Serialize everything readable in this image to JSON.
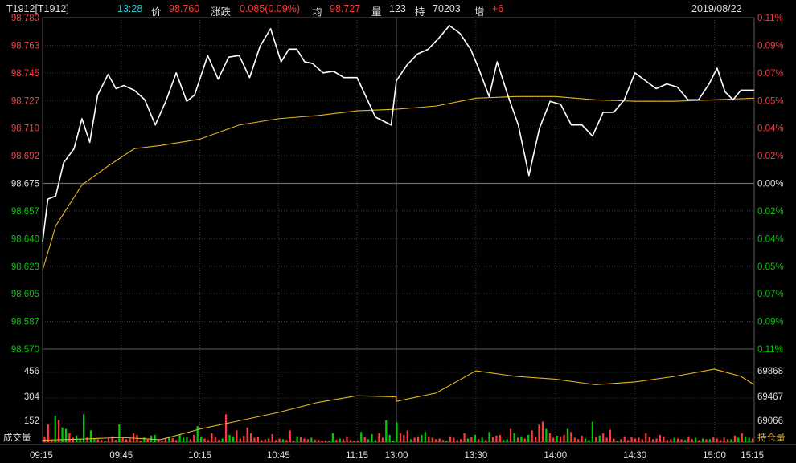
{
  "header": {
    "symbol": "T1912[T1912]",
    "time": "13:28",
    "price_label": "价",
    "price": "98.760",
    "change_label": "涨跌",
    "change": "0.085(0.09%)",
    "avg_label": "均",
    "avg": "98.727",
    "vol_label": "量",
    "vol": "123",
    "oi_label": "持",
    "oi": "70203",
    "inc_label": "增",
    "inc": "+6",
    "date": "2019/08/22"
  },
  "labels": {
    "volume": "成交量",
    "open_interest": "持仓量"
  },
  "colors": {
    "up": "#ff3b3b",
    "down": "#00cc00",
    "price_line": "#ffffff",
    "avg_line": "#e6b422",
    "grid": "#3a3a3a",
    "accent": "#21c8d8",
    "background": "#000000"
  },
  "chart_data": {
    "type": "line",
    "x_ticks": [
      "09:15",
      "09:45",
      "10:15",
      "10:45",
      "11:15",
      "13:00",
      "13:30",
      "14:00",
      "14:30",
      "15:00",
      "15:15"
    ],
    "price_axis": {
      "ticks": [
        "98.780",
        "98.763",
        "98.745",
        "98.727",
        "98.710",
        "98.692",
        "98.675",
        "98.657",
        "98.640",
        "98.623",
        "98.605",
        "98.587",
        "98.570"
      ],
      "ylim": [
        98.57,
        98.78
      ],
      "reference": 98.675
    },
    "pct_axis": {
      "ticks": [
        "0.11%",
        "0.09%",
        "0.07%",
        "0.05%",
        "0.04%",
        "0.02%",
        "0.00%",
        "0.02%",
        "0.04%",
        "0.05%",
        "0.07%",
        "0.09%",
        "0.11%"
      ]
    },
    "volume_axis": {
      "ticks": [
        "456",
        "304",
        "152"
      ],
      "ylim": [
        0,
        608
      ]
    },
    "oi_axis": {
      "ticks": [
        "69868",
        "69467",
        "69066"
      ],
      "ylim": [
        68665,
        70269
      ]
    },
    "series": [
      {
        "name": "价",
        "x": [
          "09:15",
          "09:17",
          "09:20",
          "09:23",
          "09:27",
          "09:30",
          "09:33",
          "09:36",
          "09:40",
          "09:43",
          "09:46",
          "09:50",
          "09:54",
          "09:58",
          "10:02",
          "10:06",
          "10:10",
          "10:13",
          "10:18",
          "10:22",
          "10:26",
          "10:30",
          "10:34",
          "10:38",
          "10:42",
          "10:46",
          "10:49",
          "10:52",
          "10:55",
          "10:58",
          "11:02",
          "11:06",
          "11:10",
          "11:15",
          "11:22",
          "11:28",
          "13:00",
          "13:04",
          "13:08",
          "13:12",
          "13:16",
          "13:20",
          "13:24",
          "13:28",
          "13:31",
          "13:35",
          "13:38",
          "13:42",
          "13:46",
          "13:50",
          "13:54",
          "13:58",
          "14:02",
          "14:06",
          "14:10",
          "14:14",
          "14:18",
          "14:22",
          "14:26",
          "14:30",
          "14:34",
          "14:38",
          "14:42",
          "14:46",
          "14:50",
          "14:54",
          "14:58",
          "15:01",
          "15:04",
          "15:07",
          "15:10",
          "15:13",
          "15:15"
        ],
        "values": [
          98.638,
          98.665,
          98.667,
          98.688,
          98.697,
          98.716,
          98.701,
          98.731,
          98.744,
          98.735,
          98.737,
          98.734,
          98.728,
          98.712,
          98.727,
          98.745,
          98.727,
          98.731,
          98.756,
          98.741,
          98.755,
          98.756,
          98.742,
          98.762,
          98.773,
          98.752,
          98.76,
          98.76,
          98.752,
          98.751,
          98.745,
          98.746,
          98.742,
          98.742,
          98.717,
          98.712,
          98.74,
          98.75,
          98.757,
          98.76,
          98.767,
          98.775,
          98.77,
          98.76,
          98.748,
          98.73,
          98.752,
          98.731,
          98.712,
          98.68,
          98.71,
          98.727,
          98.725,
          98.712,
          98.712,
          98.705,
          98.72,
          98.72,
          98.728,
          98.745,
          98.74,
          98.735,
          98.738,
          98.736,
          98.728,
          98.728,
          98.738,
          98.748,
          98.733,
          98.728,
          98.734,
          98.734,
          98.734
        ]
      },
      {
        "name": "均",
        "x": [
          "09:15",
          "09:20",
          "09:30",
          "09:40",
          "09:50",
          "10:00",
          "10:15",
          "10:30",
          "10:45",
          "11:00",
          "11:15",
          "11:30",
          "13:00",
          "13:15",
          "13:30",
          "13:45",
          "14:00",
          "14:15",
          "14:30",
          "14:45",
          "15:00",
          "15:15"
        ],
        "values": [
          98.62,
          98.648,
          98.674,
          98.686,
          98.697,
          98.699,
          98.703,
          98.712,
          98.716,
          98.718,
          98.721,
          98.722,
          98.722,
          98.724,
          98.729,
          98.73,
          98.73,
          98.728,
          98.727,
          98.727,
          98.728,
          98.729
        ]
      },
      {
        "name": "持仓量",
        "x": [
          "09:15",
          "09:30",
          "09:45",
          "10:00",
          "10:15",
          "10:30",
          "10:45",
          "11:00",
          "11:15",
          "11:30",
          "13:00",
          "13:15",
          "13:30",
          "13:45",
          "14:00",
          "14:15",
          "14:30",
          "14:45",
          "15:00",
          "15:10",
          "15:15"
        ],
        "values": [
          68700,
          68720,
          68750,
          68710,
          68900,
          69050,
          69200,
          69380,
          69500,
          69480,
          69400,
          69550,
          69950,
          69850,
          69800,
          69700,
          69750,
          69850,
          69980,
          69850,
          69700
        ]
      }
    ],
    "volume": {
      "bars": [
        40,
        120,
        15,
        180,
        150,
        100,
        90,
        60,
        30,
        45,
        20,
        190,
        35,
        80,
        25,
        20,
        15,
        10,
        25,
        40,
        15,
        120,
        30,
        20,
        25,
        60,
        50,
        10,
        35,
        18,
        45,
        50,
        20,
        10,
        30,
        40,
        28,
        15,
        55,
        30,
        35,
        20,
        50,
        110,
        40,
        25,
        15,
        60,
        35,
        15,
        25,
        190,
        50,
        40,
        80,
        25,
        45,
        100,
        60,
        30,
        38,
        15,
        20,
        25,
        55,
        15,
        25,
        20,
        15,
        80,
        10,
        40,
        35,
        25,
        20,
        30,
        18,
        15,
        10,
        12,
        10,
        60,
        15,
        25,
        20,
        40,
        15,
        10,
        12,
        70,
        35,
        20,
        55,
        15,
        60,
        30,
        150,
        50,
        10,
        135,
        60,
        50,
        80,
        20,
        30,
        40,
        50,
        70,
        40,
        30,
        20,
        25,
        15,
        10,
        40,
        30,
        15,
        20,
        60,
        25,
        35,
        50,
        20,
        30,
        15,
        70,
        35,
        45,
        50,
        15,
        20,
        90,
        60,
        30,
        40,
        25,
        50,
        80,
        35,
        120,
        140,
        90,
        60,
        30,
        45,
        40,
        50,
        90,
        70,
        30,
        20,
        45,
        25,
        15,
        140,
        35,
        45,
        60,
        30,
        85,
        25,
        10,
        20,
        40,
        15,
        35,
        25,
        30,
        20,
        60,
        35,
        20,
        25,
        50,
        40,
        15,
        20,
        30,
        25,
        20,
        15,
        40,
        20,
        30,
        15,
        25,
        20,
        20,
        35,
        25,
        15,
        30,
        20,
        20,
        45,
        30,
        60,
        40,
        30,
        25
      ],
      "colors": "alternating up/down"
    }
  }
}
